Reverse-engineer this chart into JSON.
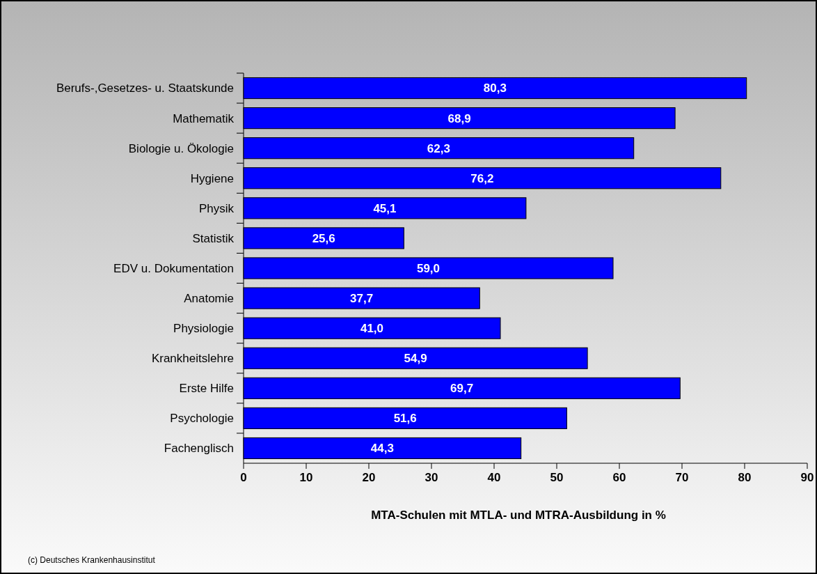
{
  "chart_data": {
    "type": "bar",
    "orientation": "horizontal",
    "xlabel": "MTA-Schulen mit MTLA- und MTRA-Ausbildung in %",
    "categories": [
      "Berufs-,Gesetzes- u. Staatskunde",
      "Mathematik",
      "Biologie u. Ökologie",
      "Hygiene",
      "Physik",
      "Statistik",
      "EDV u. Dokumentation",
      "Anatomie",
      "Physiologie",
      "Krankheitslehre",
      "Erste Hilfe",
      "Psychologie",
      "Fachenglisch"
    ],
    "values": [
      80.3,
      68.9,
      62.3,
      76.2,
      45.1,
      25.6,
      59.0,
      37.7,
      41.0,
      54.9,
      69.7,
      51.6,
      44.3
    ],
    "value_labels": [
      "80,3",
      "68,9",
      "62,3",
      "76,2",
      "45,1",
      "25,6",
      "59,0",
      "37,7",
      "41,0",
      "54,9",
      "69,7",
      "51,6",
      "44,3"
    ],
    "color": "#0000ff",
    "xlim": [
      0,
      90
    ],
    "xticks": [
      0,
      10,
      20,
      30,
      40,
      50,
      60,
      70,
      80,
      90
    ],
    "grid": false,
    "annotations": [
      "(c) Deutsches Krankenhausinstitut"
    ]
  }
}
